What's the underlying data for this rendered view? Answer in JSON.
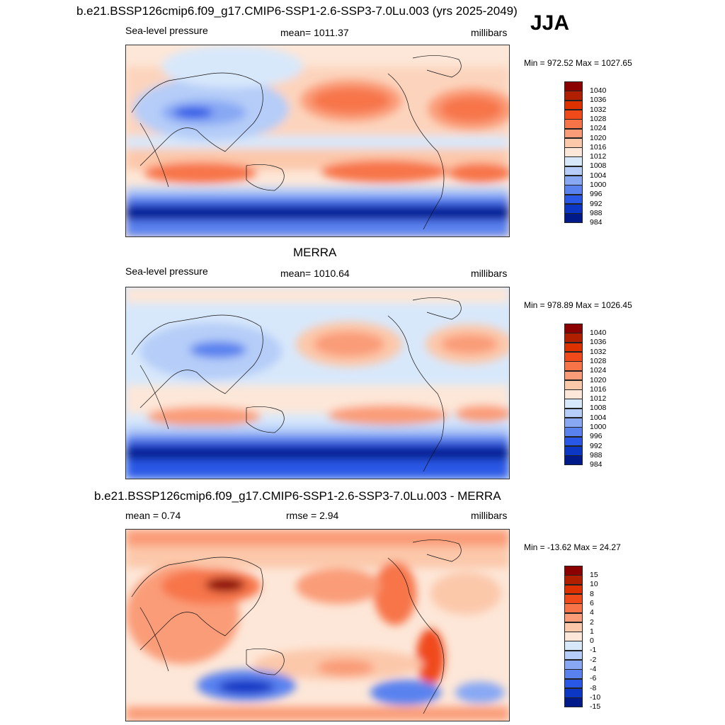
{
  "header": {
    "title": "b.e21.BSSP126cmip6.f09_g17.CMIP6-SSP1-2.6-SSP3-7.0Lu.003 (yrs 2025-2049)",
    "season": "JJA"
  },
  "panels": [
    {
      "id": "model",
      "left_label": "Sea-level pressure",
      "center_label": "mean= 1011.37",
      "right_label": "millibars",
      "minmax": "Min = 972.52 Max = 1027.65"
    },
    {
      "id": "obs",
      "title": "MERRA",
      "left_label": "Sea-level pressure",
      "center_label": "mean= 1010.64",
      "right_label": "millibars",
      "minmax": "Min = 978.89 Max = 1026.45"
    },
    {
      "id": "diff",
      "title": "b.e21.BSSP126cmip6.f09_g17.CMIP6-SSP1-2.6-SSP3-7.0Lu.003 - MERRA",
      "left_label": "mean =   0.74",
      "center_label": "rmse =   2.94",
      "right_label": "millibars",
      "minmax": "Min = -13.62 Max =  24.27"
    }
  ],
  "chart_data": [
    {
      "type": "heatmap",
      "name": "model",
      "variable": "Sea-level pressure",
      "units": "millibars",
      "mean": 1011.37,
      "min": 972.52,
      "max": 1027.65,
      "colorbar_levels": [
        "1040",
        "1036",
        "1032",
        "1028",
        "1024",
        "1020",
        "1016",
        "1012",
        "1008",
        "1004",
        "1000",
        "996",
        "992",
        "988",
        "984"
      ],
      "colorbar_colors": [
        "#8b0000",
        "#b01f00",
        "#dd3200",
        "#f04a1a",
        "#f77448",
        "#fa9c78",
        "#fcc8aa",
        "#fde7d8",
        "#d8e8fb",
        "#b5cdf8",
        "#88a8f4",
        "#5a82ef",
        "#2a58e6",
        "#0c36c4",
        "#001a8a"
      ]
    },
    {
      "type": "heatmap",
      "name": "MERRA",
      "variable": "Sea-level pressure",
      "units": "millibars",
      "mean": 1010.64,
      "min": 978.89,
      "max": 1026.45,
      "colorbar_levels": [
        "1040",
        "1036",
        "1032",
        "1028",
        "1024",
        "1020",
        "1016",
        "1012",
        "1008",
        "1004",
        "1000",
        "996",
        "992",
        "988",
        "984"
      ],
      "colorbar_colors": [
        "#8b0000",
        "#b01f00",
        "#dd3200",
        "#f04a1a",
        "#f77448",
        "#fa9c78",
        "#fcc8aa",
        "#fde7d8",
        "#d8e8fb",
        "#b5cdf8",
        "#88a8f4",
        "#5a82ef",
        "#2a58e6",
        "#0c36c4",
        "#001a8a"
      ]
    },
    {
      "type": "heatmap",
      "name": "difference",
      "units": "millibars",
      "mean": 0.74,
      "rmse": 2.94,
      "min": -13.62,
      "max": 24.27,
      "colorbar_levels": [
        "15",
        "10",
        "8",
        "6",
        "4",
        "2",
        "1",
        "0",
        "-1",
        "-2",
        "-4",
        "-6",
        "-8",
        "-10",
        "-15"
      ],
      "colorbar_colors": [
        "#8b0000",
        "#b01f00",
        "#dd3200",
        "#f04a1a",
        "#f77448",
        "#fa9c78",
        "#fcc8aa",
        "#fde7d8",
        "#d8e8fb",
        "#b5cdf8",
        "#88a8f4",
        "#5a82ef",
        "#2a58e6",
        "#0c36c4",
        "#001a8a"
      ]
    }
  ]
}
